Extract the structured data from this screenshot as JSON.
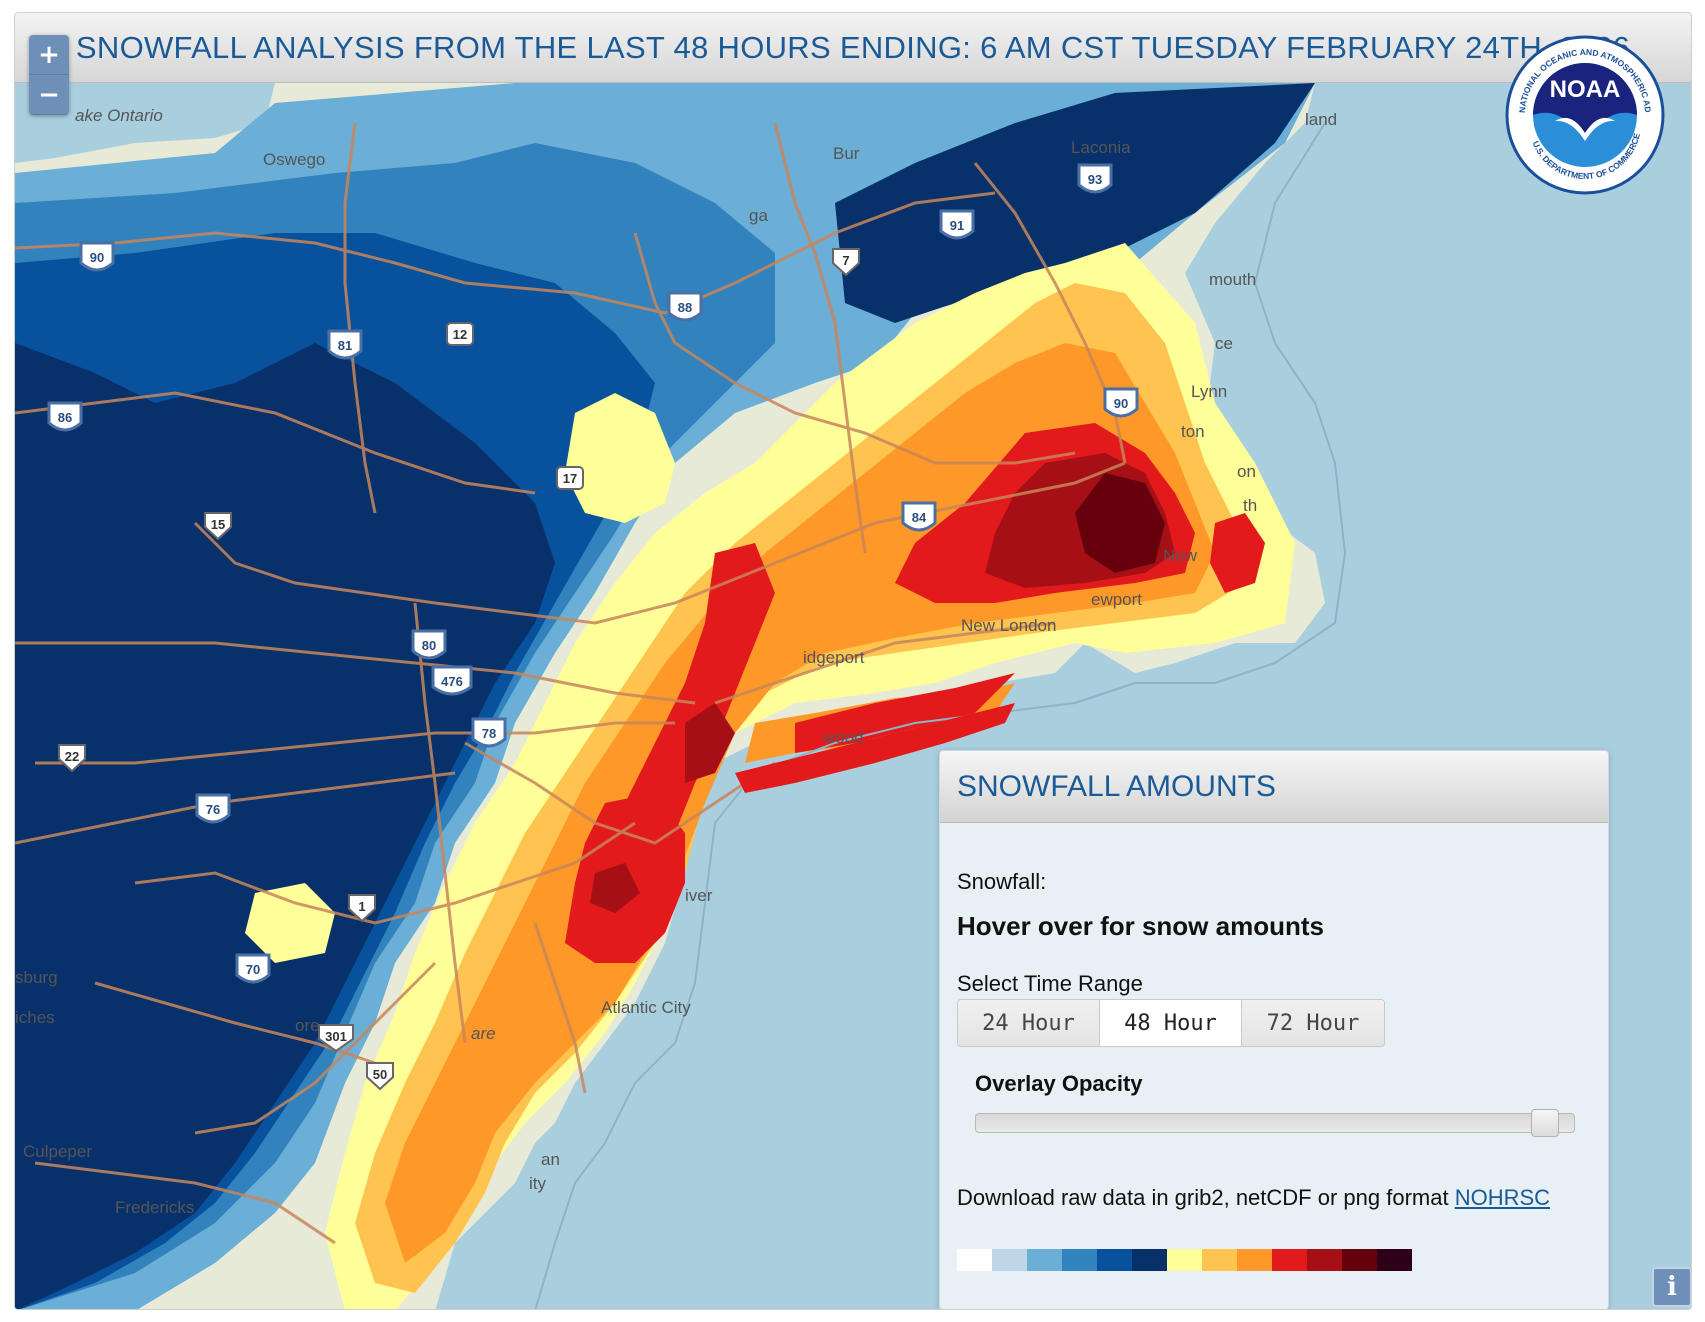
{
  "title": "SNOWFALL ANALYSIS FROM THE LAST 48 HOURS ENDING: 6 AM CST TUESDAY FEBRUARY 24TH, 2026",
  "zoom": {
    "in_label": "+",
    "out_label": "−"
  },
  "logo": {
    "text": "NOAA",
    "ring_top": "NATIONAL OCEANIC AND ATMOSPHERIC ADMINISTRATION",
    "ring_bottom": "U.S. DEPARTMENT OF COMMERCE"
  },
  "map_labels": {
    "lake": "ake Ontario",
    "oswego": "Oswego",
    "laconia": "Laconia",
    "burl": "Bur",
    "saga": "ga",
    "land": "land",
    "mouth": "mouth",
    "ce": "ce",
    "lynn": "Lynn",
    "ton": "ton",
    "on": "on",
    "th": "th",
    "new": "New",
    "newport": "ewport",
    "new_london": "New London",
    "bridgeport": "idgeport",
    "wood": "wood",
    "river": "iver",
    "atlantic_city": "Atlantic City",
    "are": "are",
    "burg": "sburg",
    "ches": "iches",
    "ore": "ore",
    "culpeper": "Culpeper",
    "fredericksburg": "Fredericks",
    "an": "an",
    "ity": "ity"
  },
  "shields": {
    "i90a": "90",
    "i81": "81",
    "i86": "86",
    "ny12": "12",
    "i88": "88",
    "us7": "7",
    "i91": "91",
    "i93": "93",
    "i90b": "90",
    "ny17": "17",
    "us15": "15",
    "i84": "84",
    "i80": "80",
    "i476": "476",
    "i78": "78",
    "us22": "22",
    "i76": "76",
    "us1": "1",
    "i70": "70",
    "us301": "301",
    "us50": "50"
  },
  "panel": {
    "title": "SNOWFALL AMOUNTS",
    "snowfall_label": "Snowfall:",
    "hover_text": "Hover over for snow amounts",
    "range_label": "Select Time Range",
    "ranges": [
      "24 Hour",
      "48 Hour",
      "72 Hour"
    ],
    "active_range": "48 Hour",
    "opacity_label": "Overlay Opacity",
    "opacity_value": 0.97,
    "download_text": "Download raw data in grib2, netCDF or png format ",
    "download_link": "NOHRSC",
    "legend_colors": [
      "#ffffff",
      "#bdd7e7",
      "#6baed6",
      "#3182bd",
      "#08519c",
      "#08306b",
      "#ffff99",
      "#fec44f",
      "#fe9929",
      "#e31a1c",
      "#a50f15",
      "#67000d",
      "#2d0018"
    ]
  },
  "info_label": "i",
  "colors": {
    "water": "#a9cfdf",
    "land": "#e8ead8",
    "light_blue": "#6baed6",
    "mid_blue": "#3182bd",
    "dark_blue": "#08519c",
    "navy": "#08306b",
    "yellow": "#ffff99",
    "gold": "#fec44f",
    "orange": "#fe9929",
    "red": "#e31a1c",
    "dark_red": "#a50f15",
    "maroon": "#67000d",
    "road": "#c8865a",
    "header_text": "#1a5a96"
  }
}
